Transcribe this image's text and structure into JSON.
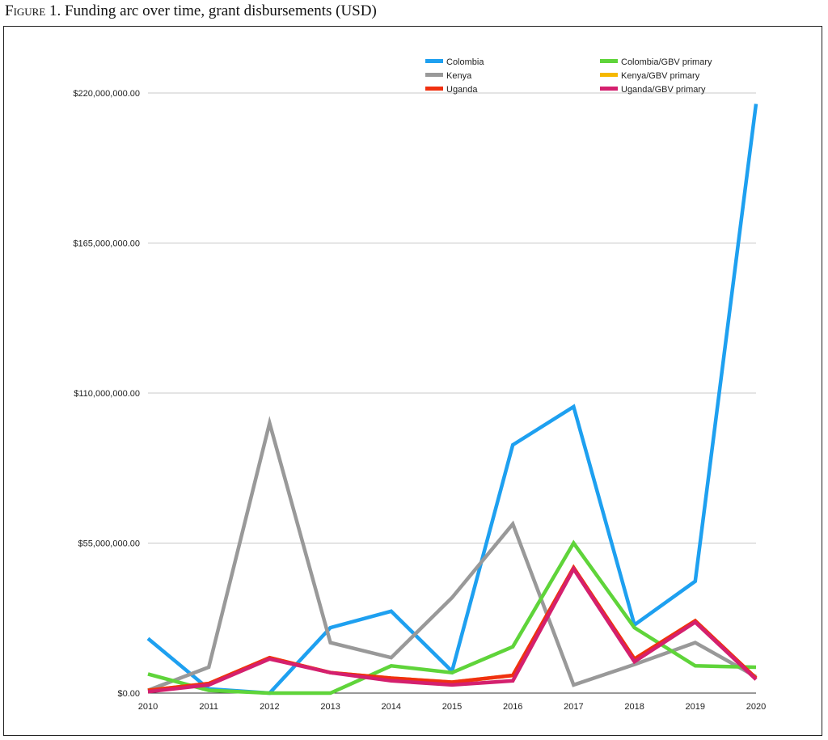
{
  "figure": {
    "label": "Figure 1.",
    "caption": "Funding arc over time, grant disbursements (USD)"
  },
  "chart_data": {
    "type": "line",
    "title": "",
    "xlabel": "",
    "ylabel": "",
    "x": [
      "2010",
      "2011",
      "2012",
      "2013",
      "2014",
      "2015",
      "2016",
      "2017",
      "2018",
      "2019",
      "2020"
    ],
    "ylim": [
      0,
      220000000
    ],
    "yticks": [
      0,
      55000000,
      110000000,
      165000000,
      220000000
    ],
    "ytick_labels": [
      "$0.00",
      "$55,000,000.00",
      "$110,000,000.00",
      "$165,000,000.00",
      "$220,000,000.00"
    ],
    "grid": "horizontal",
    "legend_position": "top",
    "series": [
      {
        "name": "Colombia",
        "color": "#1ea0f0",
        "values": [
          20000000,
          1500000,
          0,
          24000000,
          30000000,
          8000000,
          91000000,
          105000000,
          25000000,
          41000000,
          216000000
        ]
      },
      {
        "name": "Colombia/GBV primary",
        "color": "#5fd43a",
        "values": [
          7000000,
          1000000,
          0,
          0,
          10000000,
          7500000,
          17000000,
          55000000,
          24000000,
          10000000,
          9500000
        ]
      },
      {
        "name": "Kenya",
        "color": "#999999",
        "values": [
          1000000,
          9500000,
          99000000,
          18500000,
          13000000,
          35000000,
          62000000,
          3000000,
          10500000,
          18500000,
          6000000
        ]
      },
      {
        "name": "Kenya/GBV primary",
        "color": "#f5b800",
        "values": [
          1000000,
          3500000,
          13000000,
          7500000,
          5500000,
          4000000,
          6500000,
          46000000,
          12500000,
          26500000,
          5500000
        ]
      },
      {
        "name": "Uganda",
        "color": "#f03010",
        "values": [
          1000000,
          3500000,
          13000000,
          7500000,
          5500000,
          4000000,
          6500000,
          46000000,
          12500000,
          26500000,
          5500000
        ]
      },
      {
        "name": "Uganda/GBV primary",
        "color": "#d4206e",
        "values": [
          500000,
          3000000,
          12500000,
          7500000,
          4500000,
          3000000,
          4500000,
          45500000,
          11500000,
          26000000,
          5000000
        ]
      }
    ]
  }
}
